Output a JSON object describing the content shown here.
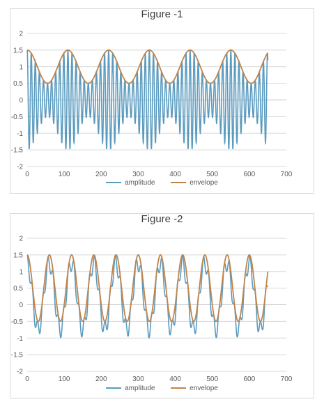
{
  "colors": {
    "amplitude": "#5b9bbf",
    "envelope": "#c0844b",
    "grid": "#d9d9d9"
  },
  "chart_data": [
    {
      "type": "line",
      "title": "Figure -1",
      "xlabel": "",
      "ylabel": "",
      "xlim": [
        0,
        700
      ],
      "ylim": [
        -2,
        2
      ],
      "xticks": [
        "0",
        "100",
        "200",
        "300",
        "400",
        "500",
        "600",
        "700"
      ],
      "yticks": [
        "2",
        "1.5",
        "1",
        "0.5",
        "0",
        "-0.5",
        "-1",
        "-1.5",
        "-2"
      ],
      "grid": true,
      "legend_position": "bottom",
      "series": [
        {
          "name": "amplitude",
          "color": "#5b9bbf",
          "formula": "cos(2*pi*x/110)*(1+0.5*cos(2*pi*x/11))*... ",
          "points_note": ""
        },
        {
          "name": "envelope",
          "color": "#c0844b"
        }
      ],
      "samples": {
        "x_range": [
          0,
          650
        ],
        "carrier_period": 11,
        "envelope_period": 110,
        "envelope_min": 0.5,
        "envelope_max": 1.5
      }
    },
    {
      "type": "line",
      "title": "Figure -2",
      "xlabel": "",
      "ylabel": "",
      "xlim": [
        0,
        700
      ],
      "ylim": [
        -2,
        2
      ],
      "xticks": [
        "0",
        "100",
        "200",
        "300",
        "400",
        "500",
        "600",
        "700"
      ],
      "yticks": [
        "2",
        "1.5",
        "1",
        "0.5",
        "0",
        "-0.5",
        "-1",
        "-1.5",
        "-2"
      ],
      "grid": true,
      "legend_position": "bottom",
      "series": [
        {
          "name": "amplitude",
          "color": "#5b9bbf"
        },
        {
          "name": "envelope",
          "color": "#c0844b"
        }
      ],
      "samples": {
        "x_range": [
          0,
          650
        ],
        "carrier_period": 14,
        "envelope_period": 60,
        "envelope_min": -0.5,
        "envelope_max": 1.5
      }
    }
  ]
}
